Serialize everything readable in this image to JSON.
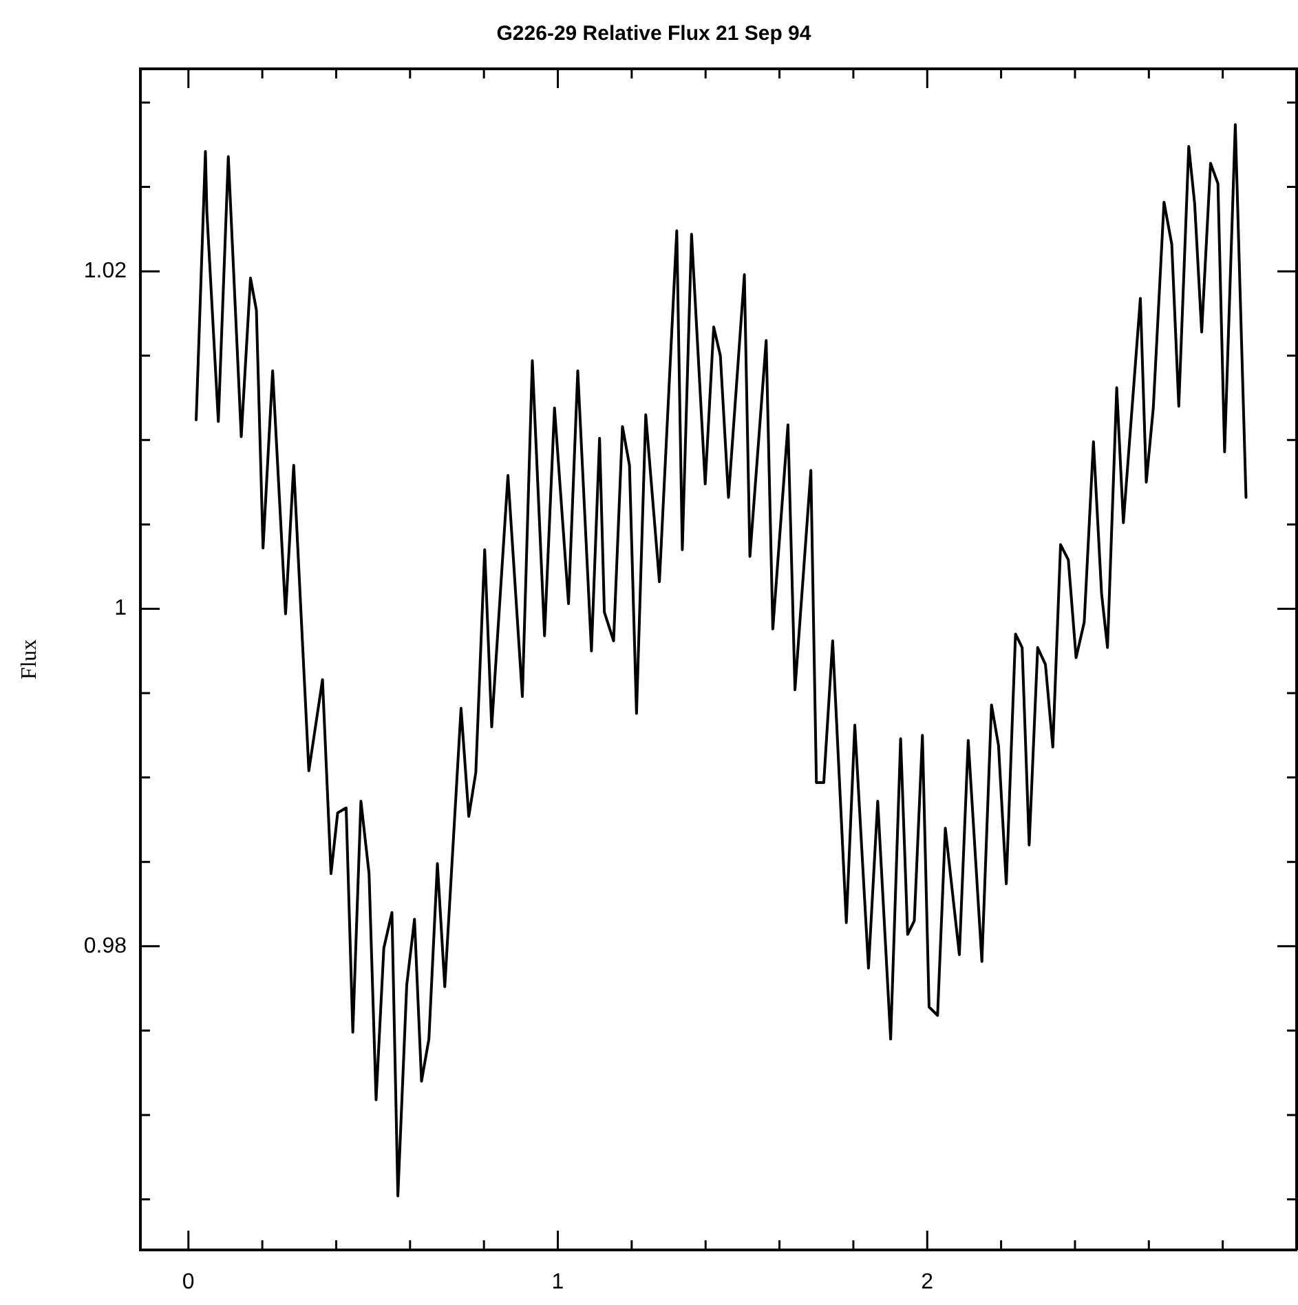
{
  "chart_data": {
    "type": "line",
    "title": "G226-29 Relative Flux 21 Sep 94",
    "ylabel": "Flux",
    "xlim": [
      -0.13,
      3.0
    ],
    "xticks": [
      0,
      {
        "value": 0.2,
        "label": null
      },
      {
        "value": 0.4,
        "label": null
      },
      {
        "value": 0.6,
        "label": null
      },
      {
        "value": 0.8,
        "label": null
      },
      1,
      {
        "value": 1.2,
        "label": null
      },
      {
        "value": 1.4,
        "label": null
      },
      {
        "value": 1.6,
        "label": null
      },
      {
        "value": 1.8,
        "label": null
      },
      2,
      {
        "value": 2.2,
        "label": null
      },
      {
        "value": 2.4,
        "label": null
      },
      {
        "value": 2.6,
        "label": null
      },
      {
        "value": 2.8,
        "label": null
      }
    ],
    "ylim": [
      0.962,
      1.032
    ],
    "yticks": [
      {
        "value": 0.965,
        "label": null
      },
      {
        "value": 0.97,
        "label": null
      },
      {
        "value": 0.975,
        "label": null
      },
      0.98,
      {
        "value": 0.985,
        "label": null
      },
      {
        "value": 0.99,
        "label": null
      },
      {
        "value": 0.995,
        "label": null
      },
      1,
      {
        "value": 1.005,
        "label": null
      },
      {
        "value": 1.01,
        "label": null
      },
      {
        "value": 1.015,
        "label": null
      },
      1.02,
      {
        "value": 1.025,
        "label": null
      },
      {
        "value": 1.03,
        "label": null
      }
    ],
    "grid": false,
    "marker": "none",
    "line_style": "solid",
    "series": [
      {
        "color": "#000000",
        "x": [
          0.021,
          0.046,
          0.05,
          0.081,
          0.108,
          0.143,
          0.168,
          0.184,
          0.202,
          0.228,
          0.263,
          0.285,
          0.326,
          0.363,
          0.386,
          0.404,
          0.427,
          0.445,
          0.467,
          0.489,
          0.508,
          0.529,
          0.551,
          0.567,
          0.591,
          0.612,
          0.631,
          0.651,
          0.674,
          0.694,
          0.738,
          0.759,
          0.778,
          0.802,
          0.821,
          0.865,
          0.904,
          0.931,
          0.964,
          0.991,
          1.029,
          1.054,
          1.091,
          1.113,
          1.126,
          1.151,
          1.175,
          1.194,
          1.213,
          1.238,
          1.275,
          1.322,
          1.337,
          1.362,
          1.399,
          1.422,
          1.44,
          1.462,
          1.505,
          1.52,
          1.564,
          1.582,
          1.623,
          1.642,
          1.685,
          1.7,
          1.72,
          1.744,
          1.781,
          1.804,
          1.841,
          1.866,
          1.901,
          1.928,
          1.947,
          1.965,
          1.987,
          2.005,
          2.028,
          2.049,
          2.087,
          2.111,
          2.148,
          2.174,
          2.193,
          2.214,
          2.239,
          2.257,
          2.276,
          2.299,
          2.32,
          2.34,
          2.361,
          2.382,
          2.403,
          2.425,
          2.45,
          2.472,
          2.488,
          2.513,
          2.531,
          2.577,
          2.593,
          2.612,
          2.641,
          2.662,
          2.681,
          2.708,
          2.724,
          2.743,
          2.767,
          2.787,
          2.805,
          2.834,
          2.863
        ],
        "values": [
          1.0112,
          1.0271,
          1.0235,
          1.0111,
          1.0268,
          1.0102,
          1.0196,
          1.0177,
          1.0036,
          1.0141,
          0.9997,
          1.0085,
          0.9904,
          0.9958,
          0.9843,
          0.9879,
          0.9882,
          0.9749,
          0.9886,
          0.9843,
          0.9709,
          0.9799,
          0.982,
          0.9652,
          0.9777,
          0.9816,
          0.972,
          0.9745,
          0.9849,
          0.9776,
          0.9941,
          0.9877,
          0.9903,
          1.0035,
          0.993,
          1.0079,
          0.9948,
          1.0147,
          0.9984,
          1.0119,
          1.0003,
          1.0141,
          0.9975,
          1.0101,
          0.9998,
          0.9981,
          1.0108,
          1.0085,
          0.9938,
          1.0115,
          1.0016,
          1.0224,
          1.0035,
          1.0222,
          1.0074,
          1.0167,
          1.015,
          1.0066,
          1.0198,
          1.0031,
          1.0159,
          0.9988,
          1.0109,
          0.9952,
          1.0082,
          0.9897,
          0.9897,
          0.9981,
          0.9814,
          0.9931,
          0.9787,
          0.9886,
          0.9745,
          0.9923,
          0.9807,
          0.9815,
          0.9925,
          0.9764,
          0.9759,
          0.987,
          0.9795,
          0.9922,
          0.9791,
          0.9943,
          0.9919,
          0.9837,
          0.9985,
          0.9977,
          0.986,
          0.9977,
          0.9967,
          0.9918,
          1.0038,
          1.0029,
          0.9971,
          0.9992,
          1.0099,
          1.0009,
          0.9977,
          1.0131,
          1.0051,
          1.0184,
          1.0075,
          1.0119,
          1.0241,
          1.0216,
          1.012,
          1.0274,
          1.024,
          1.0164,
          1.0264,
          1.0252,
          1.0093,
          1.0287,
          1.0066
        ]
      }
    ]
  }
}
